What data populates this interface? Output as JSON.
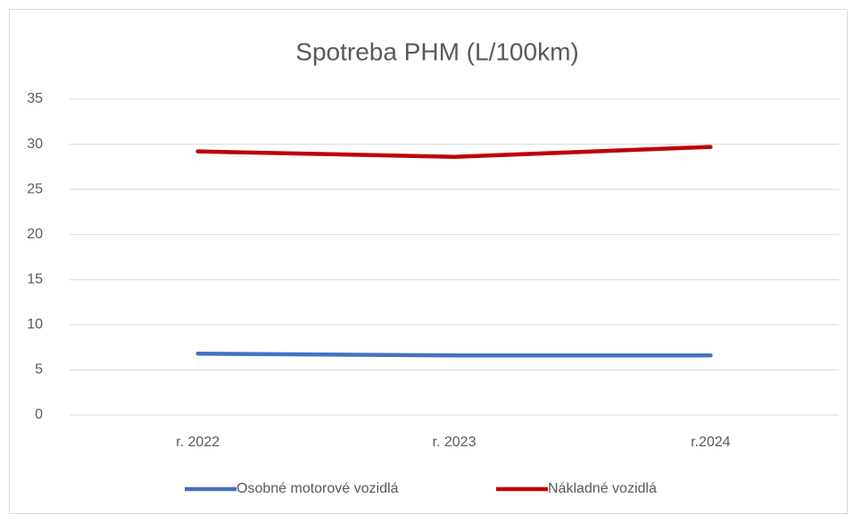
{
  "chart_data": {
    "type": "line",
    "title": "Spotreba PHM (L/100km)",
    "categories": [
      "r. 2022",
      "r. 2023",
      "r.2024"
    ],
    "series": [
      {
        "name": "Osobné motorové vozidlá",
        "color": "#4472c4",
        "values": [
          6.8,
          6.6,
          6.6
        ]
      },
      {
        "name": "Nákladné vozidlá",
        "color": "#c00000",
        "values": [
          29.2,
          28.6,
          29.7
        ]
      }
    ],
    "ylim": [
      0,
      35
    ],
    "yticks": [
      0,
      5,
      10,
      15,
      20,
      25,
      30,
      35
    ],
    "grid": true,
    "legend": "bottom"
  }
}
